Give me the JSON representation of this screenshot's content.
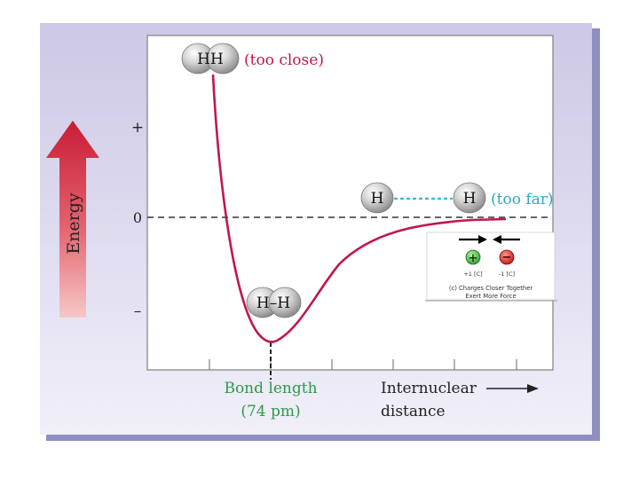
{
  "axes": {
    "y_label": "Energy",
    "y_tick_plus": "+",
    "y_tick_zero": "0",
    "y_tick_minus": "–",
    "x_label_line1": "Internuclear",
    "x_label_line2": "distance"
  },
  "annotations": {
    "too_close_molecule": "HH",
    "too_close_label": "(too close)",
    "bond_molecule": "H–H",
    "bond_length_line1": "Bond length",
    "bond_length_line2": "(74 pm)",
    "far_atom_left": "H",
    "far_atom_right": "H",
    "too_far_label": "(too far)"
  },
  "inset": {
    "plus_sign": "+",
    "minus_sign": "−",
    "plus_charge": "+1 [C]",
    "minus_charge": "-1 [C]",
    "caption_line1": "(c) Charges Closer Together",
    "caption_line2": "Exert More Force"
  },
  "colors": {
    "curve": "#c0184a",
    "bond_label": "#2e9a4a",
    "too_far": "#2aa9c9",
    "dotted_link": "#3bb8d8"
  }
}
